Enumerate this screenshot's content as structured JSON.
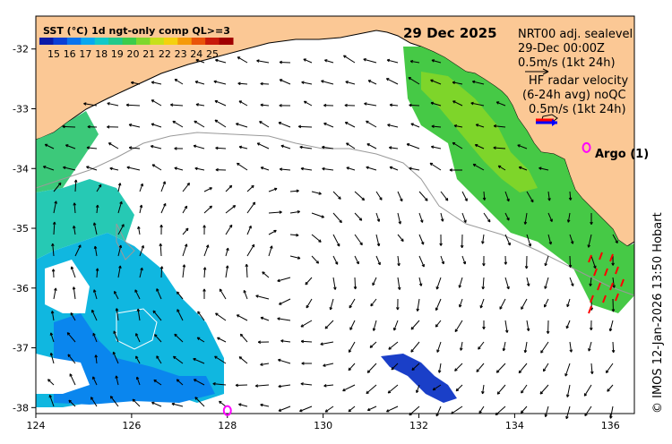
{
  "map": {
    "date": "29 Dec 2025",
    "legend": {
      "title": "SST (°C) 1d ngt-only comp QL>=3",
      "labels": [
        "15",
        "16",
        "17",
        "18",
        "19",
        "20",
        "21",
        "22",
        "23",
        "24",
        "25"
      ],
      "colors": [
        "#0a1aa8",
        "#0b3fd6",
        "#0a74ee",
        "#08a8f0",
        "#12c9c8",
        "#22c98a",
        "#3ccc4a",
        "#7fd72c",
        "#c7e01a",
        "#f4d10e",
        "#f59a0a",
        "#e9530a",
        "#c81a0a",
        "#a00000"
      ]
    },
    "nrt_note": {
      "title": "NRT00 adj. sealevel",
      "time": "29-Dec 00:00Z",
      "scale": "0.5m/s (1kt 24h)"
    },
    "hf_note": {
      "title": "HF radar velocity",
      "avg": "(6-24h avg) noQC",
      "scale": "0.5m/s (1kt 24h)"
    },
    "argo": {
      "label": "Argo (1)",
      "lon": 135.5,
      "lat": -33.65
    },
    "argo_bottom": {
      "lon": 128.0,
      "lat": -38.05
    },
    "credit": "© IMOS 12-Jan-2026 13:50 Hobart",
    "x_axis": {
      "ticks": [
        124,
        126,
        128,
        130,
        132,
        134,
        136
      ],
      "range": [
        124,
        136.5
      ]
    },
    "y_axis": {
      "ticks": [
        -32,
        -33,
        -34,
        -35,
        -36,
        -37,
        -38
      ],
      "range": [
        -38.1,
        -31.45
      ]
    },
    "colors": {
      "land": "#fbc895",
      "coast": "#000000",
      "shelf_contour": "#9a9a9a",
      "argo": "#ff00ff",
      "hf_arrow_red": "#ff0000",
      "hf_arrow_blue": "#0000ff"
    }
  }
}
